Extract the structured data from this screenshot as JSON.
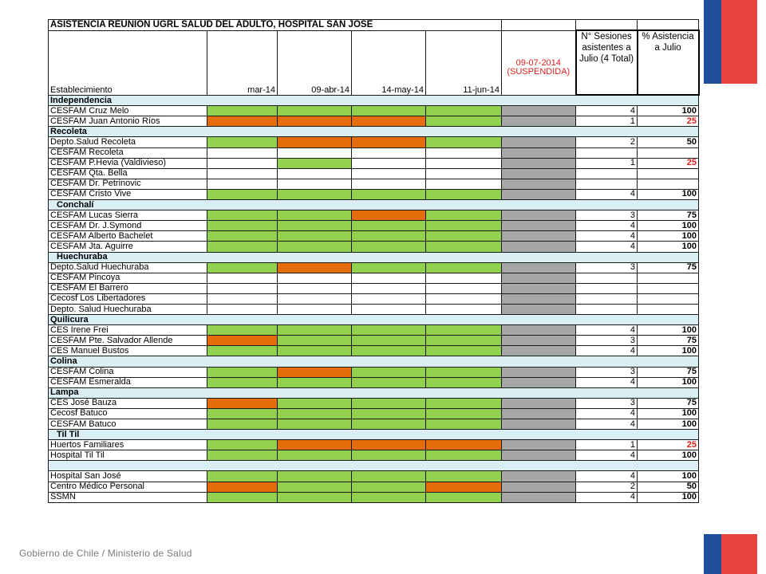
{
  "title": "ASISTENCIA REUNIÓN UGRL SALUD DEL ADULTO, HOSPITAL SAN JOSÉ",
  "columns": {
    "establishment": "Establecimiento",
    "dates": [
      "mar-14",
      "09-abr-14",
      "14-may-14",
      "11-jun-14"
    ],
    "suspended_date": "09-07-2014",
    "suspended_label": "(SUSPENDIDA)",
    "sessions": "N° Sesiones asistentes a Julio (4 Total)",
    "percent": "% Asistencia a Julio"
  },
  "legend_colors": {
    "attended": "#92d050",
    "absent": "#e46c0a",
    "suspended": "#a6a6a6",
    "group_band": "#dbeef3",
    "low_percent": "#e3211c"
  },
  "rows": [
    {
      "group": "Independencia"
    },
    {
      "name": "CESFAM Cruz Melo",
      "cells": [
        "G",
        "G",
        "G",
        "G"
      ],
      "sessions": "4",
      "percent": "100"
    },
    {
      "name": "CESFAM Juan Antonio Ríos",
      "cells": [
        "O",
        "O",
        "O",
        "G"
      ],
      "sessions": "1",
      "percent": "25",
      "low": true
    },
    {
      "group": "Recoleta"
    },
    {
      "name": "Depto.Salud Recoleta",
      "cells": [
        "G",
        "O",
        "O",
        "G"
      ],
      "sessions": "2",
      "percent": "50"
    },
    {
      "name": "CESFAM Recoleta",
      "cells": [
        "",
        "",
        "",
        ""
      ],
      "sessions": "",
      "percent": ""
    },
    {
      "name": "CESFAM P.Hevia (Valdivieso)",
      "cells": [
        "",
        "G",
        "",
        ""
      ],
      "sessions": "1",
      "percent": "25",
      "low": true
    },
    {
      "name": "CESFAM Qta. Bella",
      "cells": [
        "",
        "",
        "",
        ""
      ],
      "sessions": "",
      "percent": ""
    },
    {
      "name": "CESFAM Dr. Petrinovic",
      "cells": [
        "",
        "",
        "",
        ""
      ],
      "sessions": "",
      "percent": ""
    },
    {
      "name": "CESFAM Cristo Vive",
      "cells": [
        "G",
        "G",
        "G",
        "G"
      ],
      "sessions": "4",
      "percent": "100"
    },
    {
      "group": "Conchalí"
    },
    {
      "name": "CESFAM Lucas Sierra",
      "cells": [
        "G",
        "G",
        "O",
        "G"
      ],
      "sessions": "3",
      "percent": "75"
    },
    {
      "name": "CESFAM Dr. J.Symond",
      "cells": [
        "G",
        "G",
        "G",
        "G"
      ],
      "sessions": "4",
      "percent": "100"
    },
    {
      "name": "CESFAM  Alberto Bachelet",
      "cells": [
        "G",
        "G",
        "G",
        "G"
      ],
      "sessions": "4",
      "percent": "100"
    },
    {
      "name": "CESFAM Jta. Aguirre",
      "cells": [
        "G",
        "G",
        "G",
        "G"
      ],
      "sessions": "4",
      "percent": "100"
    },
    {
      "group": "Huechuraba"
    },
    {
      "name": "Depto.Salud Huechuraba",
      "cells": [
        "G",
        "O",
        "G",
        "G"
      ],
      "sessions": "3",
      "percent": "75"
    },
    {
      "name": "CESFAM Pincoya",
      "cells": [
        "",
        "",
        "",
        ""
      ],
      "sessions": "",
      "percent": ""
    },
    {
      "name": "CESFAM El Barrero",
      "cells": [
        "",
        "",
        "",
        ""
      ],
      "sessions": "",
      "percent": ""
    },
    {
      "name": "Cecosf Los Libertadores",
      "cells": [
        "",
        "",
        "",
        ""
      ],
      "sessions": "",
      "percent": ""
    },
    {
      "name": "Depto. Salud Huechuraba",
      "cells": [
        "",
        "",
        "",
        ""
      ],
      "sessions": "",
      "percent": ""
    },
    {
      "group": "Quilicura"
    },
    {
      "name": "CES Irene Frei",
      "cells": [
        "G",
        "G",
        "G",
        "G"
      ],
      "sessions": "4",
      "percent": "100"
    },
    {
      "name": "CESFAM Pte. Salvador Allende",
      "cells": [
        "O",
        "G",
        "G",
        "G"
      ],
      "sessions": "3",
      "percent": "75"
    },
    {
      "name": "CES Manuel Bustos",
      "cells": [
        "G",
        "G",
        "G",
        "G"
      ],
      "sessions": "4",
      "percent": "100"
    },
    {
      "group": "Colina"
    },
    {
      "name": "CESFAM Colina",
      "cells": [
        "G",
        "O",
        "G",
        "G"
      ],
      "sessions": "3",
      "percent": "75"
    },
    {
      "name": "CESFAM Esmeralda",
      "cells": [
        "G",
        "G",
        "G",
        "G"
      ],
      "sessions": "4",
      "percent": "100"
    },
    {
      "group": "Lampa"
    },
    {
      "name": "CES José Bauza",
      "cells": [
        "O",
        "G",
        "G",
        "G"
      ],
      "sessions": "3",
      "percent": "75"
    },
    {
      "name": "Cecosf Batuco",
      "cells": [
        "G",
        "G",
        "G",
        "G"
      ],
      "sessions": "4",
      "percent": "100"
    },
    {
      "name": "CESFAM Batuco",
      "cells": [
        "G",
        "G",
        "G",
        "G"
      ],
      "sessions": "4",
      "percent": "100"
    },
    {
      "group": "Til Til"
    },
    {
      "name": "Huertos Familiares",
      "cells": [
        "G",
        "O",
        "O",
        "O"
      ],
      "sessions": "1",
      "percent": "25",
      "low": true
    },
    {
      "name": "Hospital Til Til",
      "cells": [
        "G",
        "G",
        "G",
        "G"
      ],
      "sessions": "4",
      "percent": "100"
    },
    {
      "group": ""
    },
    {
      "name": "Hospital San José",
      "cells": [
        "G",
        "G",
        "G",
        "G"
      ],
      "sessions": "4",
      "percent": "100"
    },
    {
      "name": "Centro Médico Personal",
      "cells": [
        "O",
        "G",
        "G",
        "O"
      ],
      "sessions": "2",
      "percent": "50"
    },
    {
      "name": "SSMN",
      "cells": [
        "G",
        "G",
        "G",
        "G"
      ],
      "sessions": "4",
      "percent": "100"
    }
  ],
  "footer": "Gobierno de Chile / Ministerio de Salud"
}
